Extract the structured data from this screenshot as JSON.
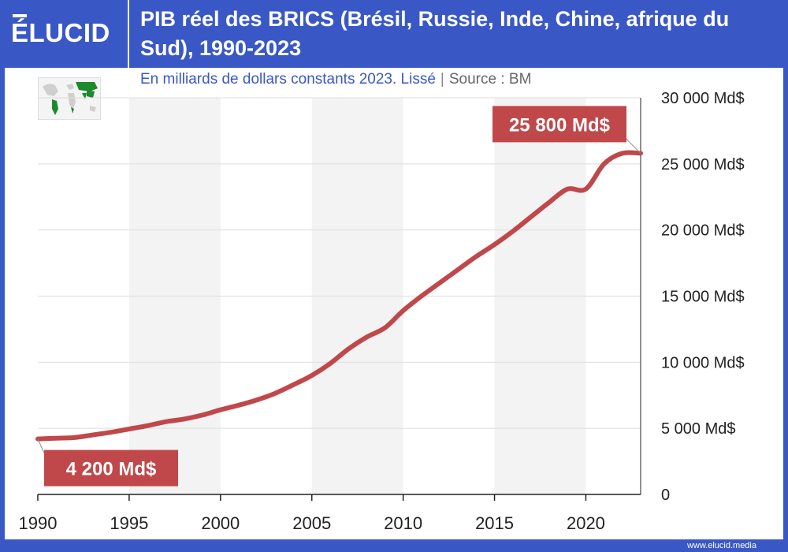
{
  "brand": {
    "logo_text": "ÉLUCID",
    "footer": "www.elucid.media"
  },
  "colors": {
    "frame": "#3a58c5",
    "line": "#c0484a",
    "annotation": "#c0484a"
  },
  "chart_data": {
    "type": "line",
    "title": "PIB réel des BRICS (Brésil, Russie, Inde, Chine, afrique du Sud), 1990-2023",
    "subtitle": "En milliards de dollars constants 2023. Lissé",
    "source": "Source : BM",
    "xlabel": "",
    "ylabel": "",
    "xlim": [
      1990,
      2023
    ],
    "ylim": [
      0,
      30000
    ],
    "grid": true,
    "x_ticks": [
      1990,
      1995,
      2000,
      2005,
      2010,
      2015,
      2020
    ],
    "x_tick_labels": [
      "1990",
      "1995",
      "2000",
      "2005",
      "2010",
      "2015",
      "2020"
    ],
    "y_ticks": [
      0,
      5000,
      10000,
      15000,
      20000,
      25000,
      30000
    ],
    "y_tick_labels": [
      "0",
      "5 000 Md$",
      "10 000 Md$",
      "15 000 Md$",
      "20 000 Md$",
      "25 000 Md$",
      "30 000 Md$"
    ],
    "series": [
      {
        "name": "PIB réel des BRICS",
        "x": [
          1990,
          1991,
          1992,
          1993,
          1994,
          1995,
          1996,
          1997,
          1998,
          1999,
          2000,
          2001,
          2002,
          2003,
          2004,
          2005,
          2006,
          2007,
          2008,
          2009,
          2010,
          2011,
          2012,
          2013,
          2014,
          2015,
          2016,
          2017,
          2018,
          2019,
          2020,
          2021,
          2022,
          2023
        ],
        "values": [
          4200,
          4250,
          4300,
          4500,
          4700,
          4950,
          5200,
          5500,
          5700,
          6000,
          6400,
          6750,
          7150,
          7650,
          8300,
          9000,
          9900,
          11000,
          11900,
          12600,
          13900,
          15000,
          16000,
          17000,
          18000,
          18900,
          19900,
          21000,
          22100,
          23100,
          23100,
          25000,
          25800,
          25800
        ]
      }
    ],
    "annotations": [
      {
        "label": "4 200 Md$",
        "x": 1990,
        "value": 4200
      },
      {
        "label": "25 800 Md$",
        "x": 2023,
        "value": 25800
      }
    ]
  }
}
